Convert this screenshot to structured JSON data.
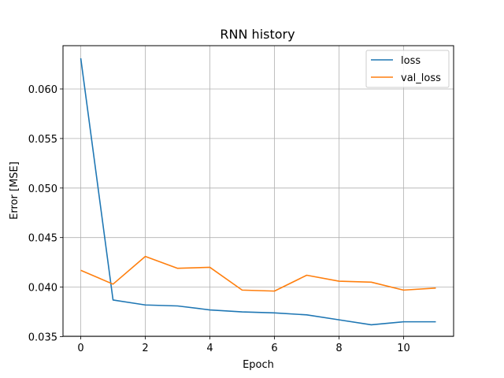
{
  "chart_data": {
    "type": "line",
    "title": "RNN history",
    "xlabel": "Epoch",
    "ylabel": "Error [MSE]",
    "x": [
      0,
      1,
      2,
      3,
      4,
      5,
      6,
      7,
      8,
      9,
      10,
      11
    ],
    "xlim": [
      -0.55,
      11.55
    ],
    "ylim": [
      0.03504,
      0.06437
    ],
    "xticks": [
      0,
      2,
      4,
      6,
      8,
      10
    ],
    "xtick_labels": [
      "0",
      "2",
      "4",
      "6",
      "8",
      "10"
    ],
    "yticks": [
      0.035,
      0.04,
      0.045,
      0.05,
      0.055,
      0.06
    ],
    "ytick_labels": [
      "0.035",
      "0.040",
      "0.045",
      "0.050",
      "0.055",
      "0.060"
    ],
    "grid": true,
    "legend_position": "top-right",
    "series": [
      {
        "name": "loss",
        "color": "#1f77b4",
        "values": [
          0.0631,
          0.0387,
          0.0382,
          0.0381,
          0.0377,
          0.0375,
          0.0374,
          0.0372,
          0.0367,
          0.0362,
          0.0365,
          0.0365
        ]
      },
      {
        "name": "val_loss",
        "color": "#ff7f0e",
        "values": [
          0.0417,
          0.0403,
          0.0431,
          0.0419,
          0.042,
          0.0397,
          0.0396,
          0.0412,
          0.0406,
          0.0405,
          0.0397,
          0.0399
        ]
      }
    ]
  }
}
